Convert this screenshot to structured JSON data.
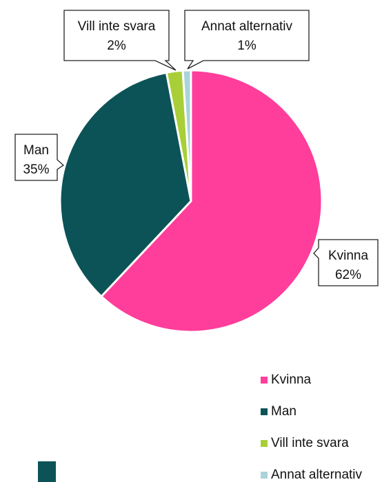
{
  "chart_data": {
    "type": "pie",
    "categories": [
      "Kvinna",
      "Man",
      "Vill inte svara",
      "Annat alternativ"
    ],
    "values": [
      62,
      35,
      2,
      1
    ],
    "value_labels": [
      "62%",
      "35%",
      "2%",
      "1%"
    ],
    "colors": [
      "#ff3d9b",
      "#0c5357",
      "#a8cf38",
      "#a9d3d9"
    ],
    "legend": "bottom-right"
  }
}
